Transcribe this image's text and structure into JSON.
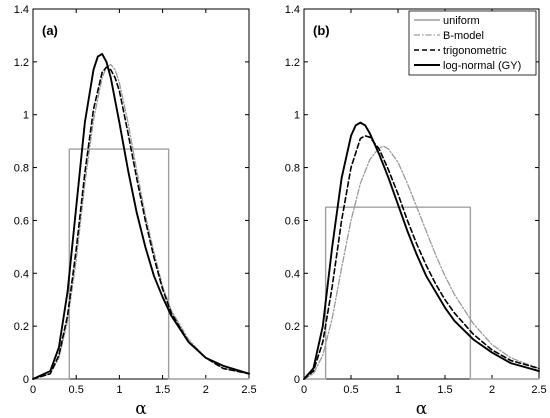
{
  "chart_data": [
    {
      "type": "line",
      "panel_label": "(a)",
      "xlabel": "α",
      "ylabel": "",
      "xlim": [
        0,
        2.5
      ],
      "ylim": [
        0,
        1.4
      ],
      "xticks": [
        "0",
        "0.5",
        "1",
        "1.5",
        "2",
        "2.5"
      ],
      "yticks": [
        "0",
        "0.2",
        "0.4",
        "0.6",
        "0.8",
        "1",
        "1.2",
        "1.4"
      ],
      "legend": null,
      "series": [
        {
          "name": "uniform",
          "color": "#a0a0a0",
          "dash": "solid",
          "x": [
            0,
            0.42,
            0.42,
            1.57,
            1.57,
            2.5
          ],
          "y": [
            0,
            0,
            0.87,
            0.87,
            0,
            0
          ]
        },
        {
          "name": "B-model",
          "color": "#9a9a9a",
          "dash": "dashdot",
          "x": [
            0,
            0.2,
            0.3,
            0.4,
            0.5,
            0.6,
            0.7,
            0.8,
            0.85,
            0.9,
            0.95,
            1.0,
            1.1,
            1.2,
            1.3,
            1.4,
            1.5,
            1.6,
            1.8,
            2.0,
            2.2,
            2.5
          ],
          "y": [
            0,
            0.02,
            0.08,
            0.22,
            0.45,
            0.74,
            0.98,
            1.14,
            1.18,
            1.19,
            1.17,
            1.12,
            0.97,
            0.79,
            0.62,
            0.48,
            0.35,
            0.26,
            0.15,
            0.08,
            0.04,
            0.02
          ]
        },
        {
          "name": "trigonometric",
          "color": "#000000",
          "dash": "dashed",
          "x": [
            0,
            0.2,
            0.3,
            0.4,
            0.5,
            0.6,
            0.7,
            0.8,
            0.85,
            0.9,
            0.95,
            1.0,
            1.1,
            1.2,
            1.3,
            1.4,
            1.5,
            1.6,
            1.8,
            2.0,
            2.2,
            2.5
          ],
          "y": [
            0,
            0.02,
            0.09,
            0.24,
            0.49,
            0.78,
            1.02,
            1.16,
            1.18,
            1.17,
            1.14,
            1.09,
            0.93,
            0.76,
            0.6,
            0.46,
            0.34,
            0.25,
            0.14,
            0.08,
            0.04,
            0.02
          ]
        },
        {
          "name": "log-normal (GY)",
          "color": "#000000",
          "dash": "solid",
          "x": [
            0,
            0.2,
            0.3,
            0.4,
            0.5,
            0.6,
            0.7,
            0.75,
            0.8,
            0.85,
            0.9,
            1.0,
            1.1,
            1.2,
            1.3,
            1.4,
            1.5,
            1.6,
            1.8,
            2.0,
            2.2,
            2.5
          ],
          "y": [
            0,
            0.03,
            0.12,
            0.33,
            0.65,
            0.97,
            1.17,
            1.22,
            1.23,
            1.2,
            1.14,
            0.97,
            0.79,
            0.63,
            0.5,
            0.39,
            0.31,
            0.24,
            0.14,
            0.08,
            0.05,
            0.02
          ]
        }
      ]
    },
    {
      "type": "line",
      "panel_label": "(b)",
      "xlabel": "α",
      "ylabel": "",
      "xlim": [
        0,
        2.5
      ],
      "ylim": [
        0,
        1.4
      ],
      "xticks": [
        "0",
        "0.5",
        "1",
        "1.5",
        "2",
        "2.5"
      ],
      "yticks": [
        "0",
        "0.2",
        "0.4",
        "0.6",
        "0.8",
        "1",
        "1.2",
        "1.4"
      ],
      "legend": "top-right",
      "series": [
        {
          "name": "uniform",
          "color": "#a0a0a0",
          "dash": "solid",
          "x": [
            0,
            0.23,
            0.23,
            1.77,
            1.77,
            2.5
          ],
          "y": [
            0,
            0,
            0.65,
            0.65,
            0,
            0
          ]
        },
        {
          "name": "B-model",
          "color": "#9a9a9a",
          "dash": "dashdot",
          "x": [
            0,
            0.1,
            0.2,
            0.3,
            0.4,
            0.5,
            0.6,
            0.7,
            0.8,
            0.85,
            0.9,
            1.0,
            1.1,
            1.2,
            1.3,
            1.4,
            1.5,
            1.6,
            1.8,
            2.0,
            2.2,
            2.5
          ],
          "y": [
            0,
            0.02,
            0.09,
            0.23,
            0.42,
            0.6,
            0.74,
            0.83,
            0.875,
            0.88,
            0.87,
            0.82,
            0.74,
            0.65,
            0.56,
            0.47,
            0.39,
            0.32,
            0.21,
            0.13,
            0.08,
            0.04
          ]
        },
        {
          "name": "trigonometric",
          "color": "#000000",
          "dash": "dashed",
          "x": [
            0,
            0.1,
            0.2,
            0.3,
            0.4,
            0.5,
            0.6,
            0.65,
            0.7,
            0.8,
            0.9,
            1.0,
            1.1,
            1.2,
            1.3,
            1.4,
            1.5,
            1.6,
            1.8,
            2.0,
            2.2,
            2.5
          ],
          "y": [
            0,
            0.03,
            0.14,
            0.35,
            0.6,
            0.8,
            0.91,
            0.92,
            0.915,
            0.87,
            0.79,
            0.7,
            0.6,
            0.51,
            0.43,
            0.36,
            0.3,
            0.25,
            0.17,
            0.11,
            0.07,
            0.04
          ]
        },
        {
          "name": "log-normal (GY)",
          "color": "#000000",
          "dash": "solid",
          "x": [
            0,
            0.1,
            0.2,
            0.3,
            0.4,
            0.5,
            0.55,
            0.6,
            0.65,
            0.7,
            0.8,
            0.9,
            1.0,
            1.1,
            1.2,
            1.3,
            1.4,
            1.5,
            1.6,
            1.8,
            2.0,
            2.2,
            2.5
          ],
          "y": [
            0,
            0.04,
            0.2,
            0.5,
            0.76,
            0.92,
            0.96,
            0.97,
            0.96,
            0.93,
            0.85,
            0.76,
            0.66,
            0.56,
            0.47,
            0.39,
            0.33,
            0.27,
            0.22,
            0.15,
            0.1,
            0.06,
            0.03
          ]
        }
      ]
    }
  ]
}
